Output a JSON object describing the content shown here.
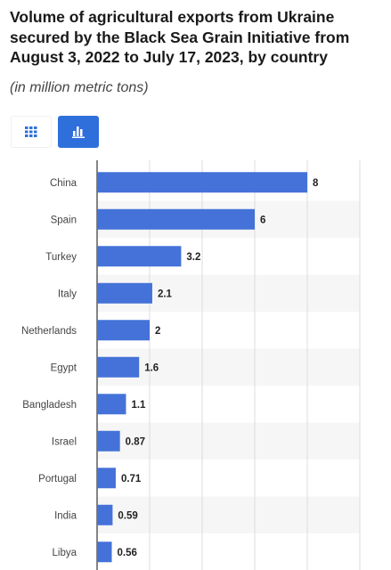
{
  "header": {
    "title": "Volume of agricultural exports from Ukraine secured by the Black Sea Grain Initiative from August 3, 2022 to July 17, 2023, by country",
    "subtitle": "(in million metric tons)"
  },
  "view_toggle": {
    "table_icon": "table-grid-icon",
    "chart_icon": "bar-chart-icon",
    "active": "chart"
  },
  "colors": {
    "bar": "#4472d8",
    "accent": "#2f6fdc",
    "grid": "#dcdcdc",
    "band": "#f6f6f6"
  },
  "chart_data": {
    "type": "bar",
    "orientation": "horizontal",
    "categories": [
      "China",
      "Spain",
      "Turkey",
      "Italy",
      "Netherlands",
      "Egypt",
      "Bangladesh",
      "Israel",
      "Portugal",
      "India",
      "Libya"
    ],
    "values": [
      8,
      6,
      3.2,
      2.1,
      2,
      1.6,
      1.1,
      0.87,
      0.71,
      0.59,
      0.56
    ],
    "data_labels": [
      "8",
      "6",
      "3.2",
      "2.1",
      "2",
      "1.6",
      "1.1",
      "0.87",
      "0.71",
      "0.59",
      "0.56"
    ],
    "title": "",
    "xlabel": "",
    "ylabel": "",
    "xlim": [
      0,
      10
    ],
    "grid": true
  }
}
